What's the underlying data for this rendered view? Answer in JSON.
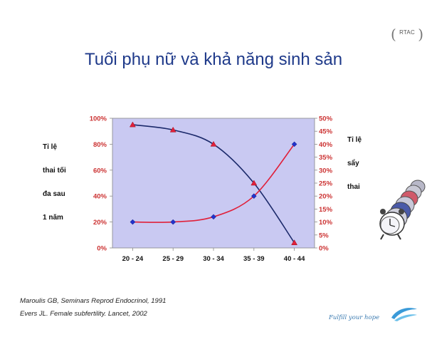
{
  "slide": {
    "title": "Tuổi phụ nữ và khả năng sinh sản",
    "logo_text": "RTAC",
    "left_axis_label_lines": [
      "Tỉ lệ",
      "thai tối",
      "đa sau",
      "1 năm"
    ],
    "right_axis_label_lines": [
      "Tỉ lệ",
      "sẩy",
      "thai"
    ],
    "citations": [
      "Maroulis GB, Seminars Reprod Endocrinol, 1991",
      "Evers JL. Female subfertility. Lancet, 2002"
    ],
    "footer_tagline": "Fulfill your hope"
  },
  "colors": {
    "title": "#1f3a8a",
    "plot_background": "#c9c9f2",
    "left_axis_text": "#cc3333",
    "right_axis_text": "#cc3333",
    "series_pregnancy": "#1c2a6b",
    "series_miscarriage": "#e0203a",
    "marker_blue": "#2233cc"
  },
  "chart_data": {
    "type": "line",
    "categories": [
      "20 - 24",
      "25 - 29",
      "30 - 34",
      "35 - 39",
      "40 - 44"
    ],
    "y_left": {
      "ticks": [
        "0%",
        "20%",
        "40%",
        "60%",
        "80%",
        "100%"
      ],
      "ylim": [
        0,
        100
      ]
    },
    "y_right": {
      "ticks": [
        "0%",
        "5%",
        "10%",
        "15%",
        "20%",
        "25%",
        "30%",
        "35%",
        "40%",
        "45%",
        "50%"
      ],
      "ylim": [
        0,
        50
      ]
    },
    "series": [
      {
        "axis": "left",
        "marker": "triangle",
        "values": [
          95,
          91,
          80,
          50,
          4
        ]
      },
      {
        "axis": "right",
        "marker": "diamond",
        "values": [
          10,
          10,
          12,
          20,
          40
        ]
      }
    ],
    "grid": false,
    "legend": "none"
  }
}
